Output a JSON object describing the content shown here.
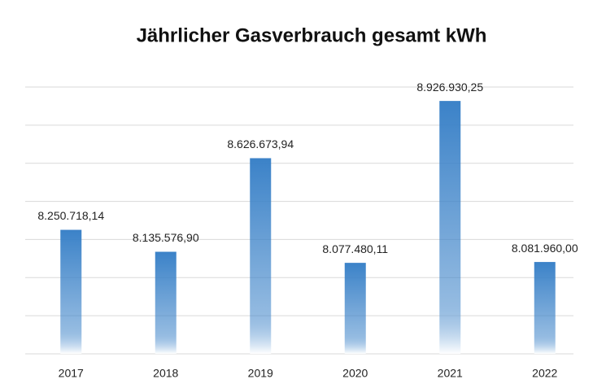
{
  "chart_data": {
    "type": "bar",
    "title": "Jährlicher Gasverbrauch gesamt kWh",
    "categories": [
      "2017",
      "2018",
      "2019",
      "2020",
      "2021",
      "2022"
    ],
    "values": [
      8250718.14,
      8135576.9,
      8626673.94,
      8077480.11,
      8926930.25,
      8081960.0
    ],
    "value_labels": [
      "8.250.718,14",
      "8.135.576,90",
      "8.626.673,94",
      "8.077.480,11",
      "8.926.930,25",
      "8.081.960,00"
    ],
    "color": "#3b82c8",
    "ylim": [
      7600000,
      9000000
    ],
    "yticks": [
      7600000,
      7800000,
      8000000,
      8200000,
      8400000,
      8600000,
      8800000,
      9000000
    ],
    "grid": true
  }
}
